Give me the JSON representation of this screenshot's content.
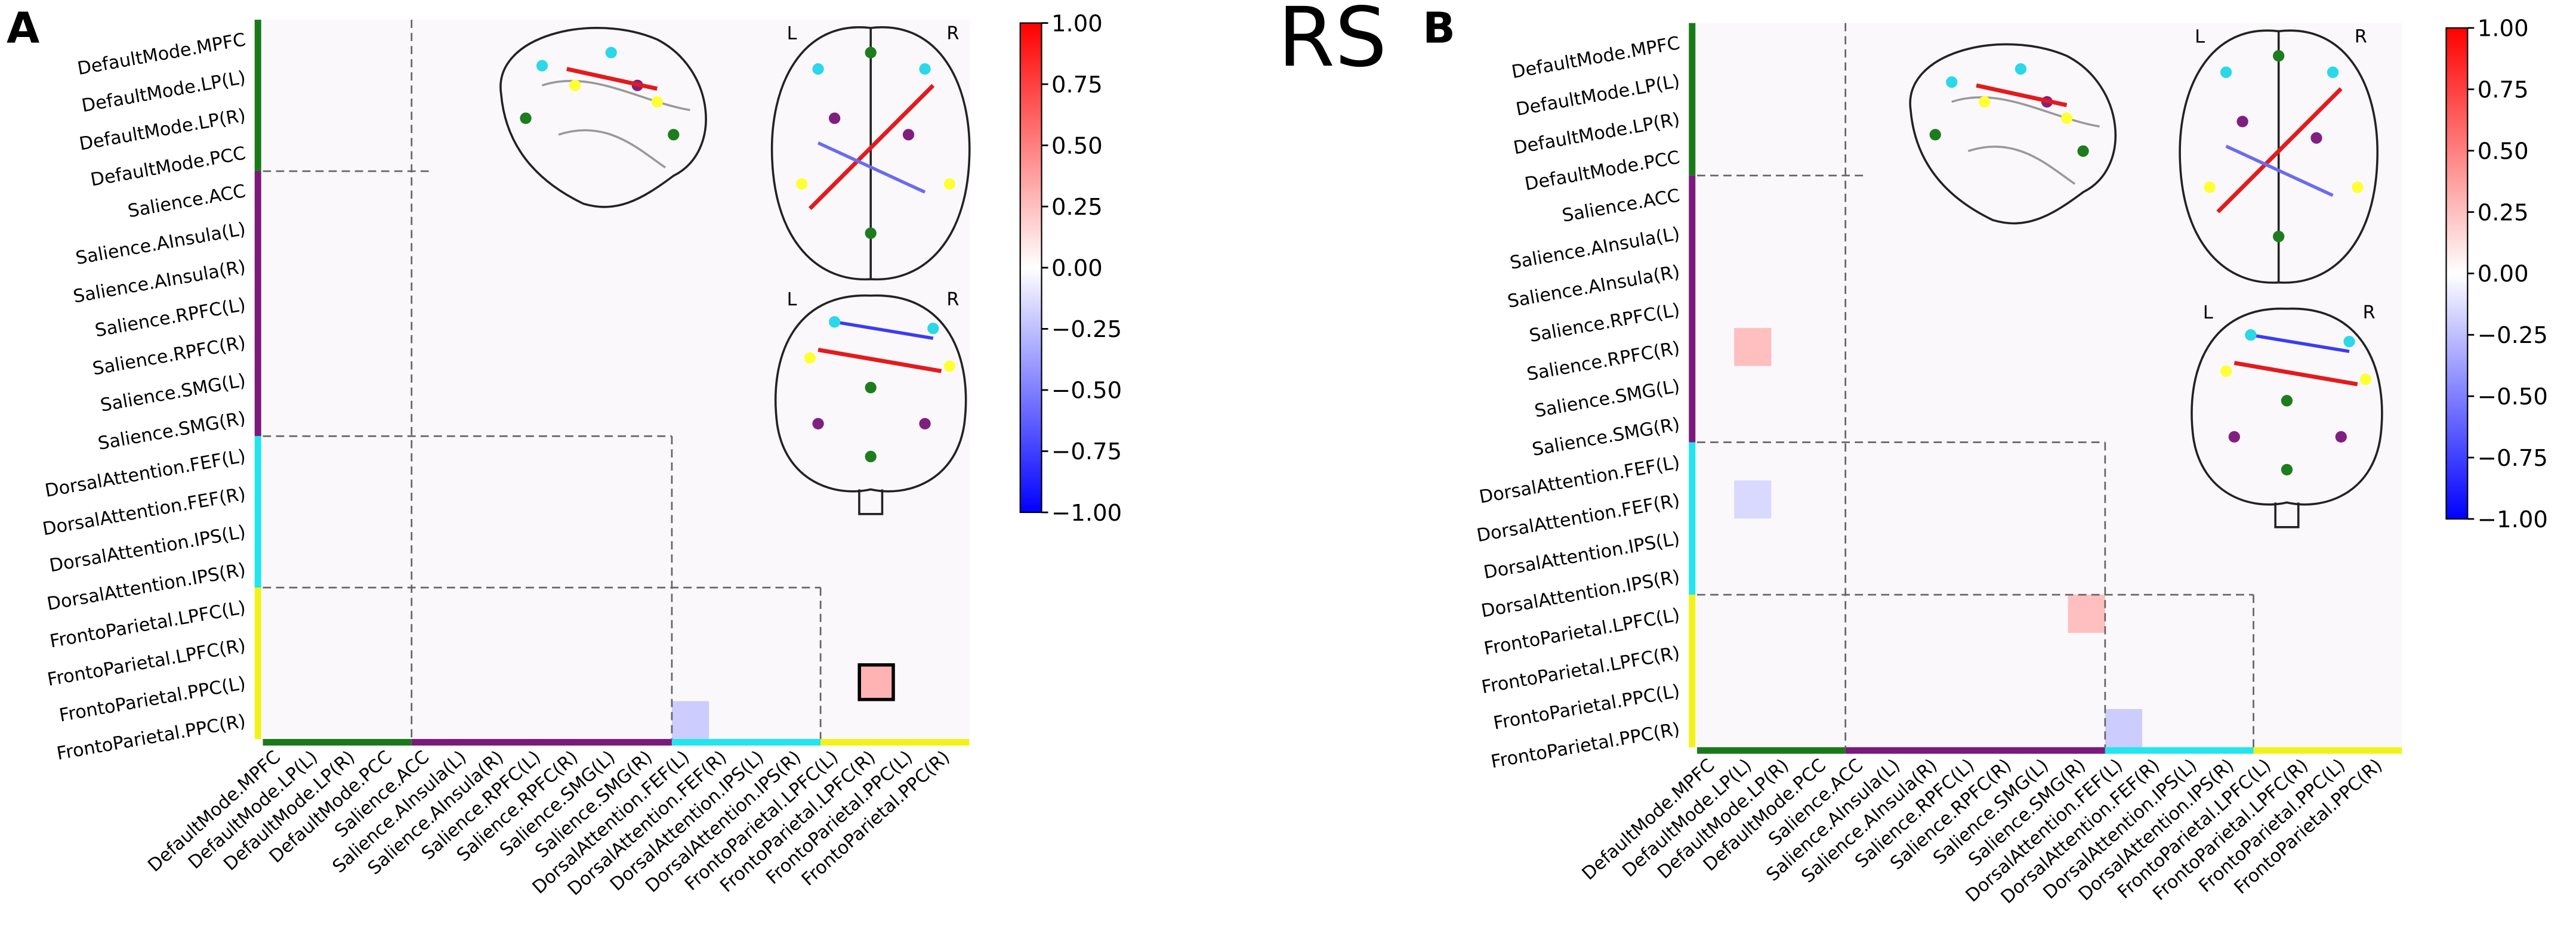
{
  "title": "RS",
  "chart_data": [
    {
      "type": "heatmap",
      "panel_label": "A",
      "orientation_labels": [
        "L",
        "R",
        "L",
        "R"
      ],
      "labels": [
        "DefaultMode.MPFC",
        "DefaultMode.LP(L)",
        "DefaultMode.LP(R)",
        "DefaultMode.PCC",
        "Salience.ACC",
        "Salience.AInsula(L)",
        "Salience.AInsula(R)",
        "Salience.RPFC(L)",
        "Salience.RPFC(R)",
        "Salience.SMG(L)",
        "Salience.SMG(R)",
        "DorsalAttention.FEF(L)",
        "DorsalAttention.FEF(R)",
        "DorsalAttention.IPS(L)",
        "DorsalAttention.IPS(R)",
        "FrontoParietal.LPFC(L)",
        "FrontoParietal.LPFC(R)",
        "FrontoParietal.PPC(L)",
        "FrontoParietal.PPC(R)"
      ],
      "group_colors": [
        "#1a7a1a",
        "#7b1a7b",
        "#22e5ee",
        "#f2f21a"
      ],
      "highlight_cell": {
        "row": "FrontoParietal.PPC(L)",
        "col": "FrontoParietal.LPFC(R)"
      },
      "values": [
        [
          0,
          0,
          0,
          0,
          0,
          0,
          0,
          0,
          0,
          0,
          0,
          0,
          0,
          0,
          0,
          0,
          0,
          0,
          0
        ],
        [
          0,
          0,
          0,
          0,
          0,
          0,
          0,
          0,
          0,
          0,
          0,
          0,
          0,
          0,
          0,
          0,
          0,
          0,
          0
        ],
        [
          0,
          0,
          0,
          0,
          0,
          0,
          0,
          0,
          0,
          0,
          0,
          0,
          0,
          0,
          0,
          0,
          0,
          0,
          0
        ],
        [
          0,
          0,
          0,
          0,
          0,
          0,
          0,
          0,
          0,
          0,
          0,
          0,
          0,
          0,
          0,
          0,
          0,
          0,
          0
        ],
        [
          0,
          0,
          0,
          0,
          0,
          0,
          0,
          0,
          0,
          0,
          0,
          0,
          0,
          0,
          0,
          0,
          0,
          0,
          0
        ],
        [
          0,
          0,
          0,
          0,
          0,
          0,
          0,
          0,
          0,
          0,
          0,
          0,
          0,
          0,
          0,
          0,
          0,
          0,
          0
        ],
        [
          0,
          0,
          0,
          0,
          0,
          0,
          0,
          0,
          0,
          0,
          0,
          0,
          0,
          0,
          0,
          0,
          0,
          0,
          0
        ],
        [
          0,
          0,
          0,
          0,
          0,
          0,
          0,
          0,
          0,
          0,
          0,
          0,
          0,
          0,
          0,
          0,
          0,
          0,
          0
        ],
        [
          0,
          0,
          0,
          0,
          0,
          0,
          0,
          0,
          0,
          0,
          0,
          0,
          0,
          0,
          0,
          0,
          0,
          0,
          0
        ],
        [
          0,
          0,
          0,
          0,
          0,
          0,
          0,
          0,
          0,
          0,
          0,
          0,
          0,
          0,
          0,
          0,
          0,
          0,
          0
        ],
        [
          0,
          0,
          0,
          0,
          0,
          0,
          0,
          0,
          0,
          0,
          0,
          0,
          0,
          0,
          0,
          0,
          0,
          0,
          0
        ],
        [
          0,
          0,
          0,
          0,
          0,
          0,
          0,
          0,
          0,
          0,
          0,
          0,
          0,
          0,
          0,
          0,
          0,
          0,
          0
        ],
        [
          0,
          0,
          0,
          0,
          0,
          0,
          0,
          0,
          0,
          0,
          0,
          0,
          0,
          0,
          0,
          0,
          0,
          0,
          0
        ],
        [
          0,
          0,
          0,
          0,
          0,
          0,
          0,
          0,
          0,
          0,
          0,
          0,
          0,
          0,
          0,
          0,
          0,
          0,
          0
        ],
        [
          0,
          0,
          0,
          0,
          0,
          0,
          0,
          0,
          0,
          0,
          0,
          0,
          0,
          0,
          0,
          0,
          0,
          0,
          0
        ],
        [
          0,
          0,
          0,
          0,
          0,
          0,
          0,
          0,
          0,
          0,
          0,
          0,
          0,
          0,
          0,
          0,
          0,
          0,
          0
        ],
        [
          0,
          0,
          0,
          0,
          0,
          0,
          0,
          0,
          0,
          0,
          0,
          0,
          0,
          0,
          0,
          0,
          0,
          0,
          0
        ],
        [
          0,
          0,
          0,
          0,
          0,
          0,
          0,
          0,
          0,
          0,
          0,
          0,
          0,
          0,
          0,
          0,
          0.3,
          0,
          0
        ],
        [
          0,
          0,
          0,
          0,
          0,
          0,
          0,
          0,
          0,
          0,
          0,
          -0.2,
          0,
          0,
          0,
          0,
          0,
          0,
          0
        ]
      ],
      "clim": [
        -1,
        1
      ],
      "cticks": [
        {
          "value": 1,
          "label": "1.00"
        },
        {
          "value": 0.75,
          "label": "0.75"
        },
        {
          "value": 0.5,
          "label": "0.50"
        },
        {
          "value": 0.25,
          "label": "0.25"
        },
        {
          "value": 0,
          "label": "0.00"
        },
        {
          "value": -0.25,
          "label": "−0.25"
        },
        {
          "value": -0.5,
          "label": "−0.50"
        },
        {
          "value": -0.75,
          "label": "−0.75"
        },
        {
          "value": -1,
          "label": "−1.00"
        }
      ]
    },
    {
      "type": "heatmap",
      "panel_label": "B",
      "orientation_labels": [
        "L",
        "R",
        "L",
        "R"
      ],
      "labels": [
        "DefaultMode.MPFC",
        "DefaultMode.LP(L)",
        "DefaultMode.LP(R)",
        "DefaultMode.PCC",
        "Salience.ACC",
        "Salience.AInsula(L)",
        "Salience.AInsula(R)",
        "Salience.RPFC(L)",
        "Salience.RPFC(R)",
        "Salience.SMG(L)",
        "Salience.SMG(R)",
        "DorsalAttention.FEF(L)",
        "DorsalAttention.FEF(R)",
        "DorsalAttention.IPS(L)",
        "DorsalAttention.IPS(R)",
        "FrontoParietal.LPFC(L)",
        "FrontoParietal.LPFC(R)",
        "FrontoParietal.PPC(L)",
        "FrontoParietal.PPC(R)"
      ],
      "group_colors": [
        "#1a7a1a",
        "#7b1a7b",
        "#22e5ee",
        "#f2f21a"
      ],
      "values": [
        [
          0,
          0,
          0,
          0,
          0,
          0,
          0,
          0,
          0,
          0,
          0,
          0,
          0,
          0,
          0,
          0,
          0,
          0,
          0
        ],
        [
          0,
          0,
          0,
          0,
          0,
          0,
          0,
          0,
          0,
          0,
          0,
          0,
          0,
          0,
          0,
          0,
          0,
          0,
          0
        ],
        [
          0,
          0,
          0,
          0,
          0,
          0,
          0,
          0,
          0,
          0,
          0,
          0,
          0,
          0,
          0,
          0,
          0,
          0,
          0
        ],
        [
          0,
          0,
          0,
          0,
          0,
          0,
          0,
          0,
          0,
          0,
          0,
          0,
          0,
          0,
          0,
          0,
          0,
          0,
          0
        ],
        [
          0,
          0,
          0,
          0,
          0,
          0,
          0,
          0,
          0,
          0,
          0,
          0,
          0,
          0,
          0,
          0,
          0,
          0,
          0
        ],
        [
          0,
          0,
          0,
          0,
          0,
          0,
          0,
          0,
          0,
          0,
          0,
          0,
          0,
          0,
          0,
          0,
          0,
          0,
          0
        ],
        [
          0,
          0,
          0,
          0,
          0,
          0,
          0,
          0,
          0,
          0,
          0,
          0,
          0,
          0,
          0,
          0,
          0,
          0,
          0
        ],
        [
          0,
          0,
          0,
          0,
          0,
          0,
          0,
          0,
          0,
          0,
          0,
          0,
          0,
          0,
          0,
          0,
          0,
          0,
          0
        ],
        [
          0,
          0.25,
          0,
          0,
          0,
          0,
          0,
          0,
          0,
          0,
          0,
          0,
          0,
          0,
          0,
          0,
          0,
          0,
          0
        ],
        [
          0,
          0,
          0,
          0,
          0,
          0,
          0,
          0,
          0,
          0,
          0,
          0,
          0,
          0,
          0,
          0,
          0,
          0,
          0
        ],
        [
          0,
          0,
          0,
          0,
          0,
          0,
          0,
          0,
          0,
          0,
          0,
          0,
          0,
          0,
          0,
          0,
          0,
          0,
          0
        ],
        [
          0,
          0,
          0,
          0,
          0,
          0,
          0,
          0,
          0,
          0,
          0,
          0,
          0,
          0,
          0,
          0,
          0,
          0,
          0
        ],
        [
          0,
          -0.15,
          0,
          0,
          0,
          0,
          0,
          0,
          0,
          0,
          0,
          0,
          0,
          0,
          0,
          0,
          0,
          0,
          0
        ],
        [
          0,
          0,
          0,
          0,
          0,
          0,
          0,
          0,
          0,
          0,
          0,
          0,
          0,
          0,
          0,
          0,
          0,
          0,
          0
        ],
        [
          0,
          0,
          0,
          0,
          0,
          0,
          0,
          0,
          0,
          0,
          0,
          0,
          0,
          0,
          0,
          0,
          0,
          0,
          0
        ],
        [
          0,
          0,
          0,
          0,
          0,
          0,
          0,
          0,
          0,
          0,
          0.25,
          0,
          0,
          0,
          0,
          0,
          0,
          0,
          0
        ],
        [
          0,
          0,
          0,
          0,
          0,
          0,
          0,
          0,
          0,
          0,
          0,
          0,
          0,
          0,
          0,
          0,
          0,
          0,
          0
        ],
        [
          0,
          0,
          0,
          0,
          0,
          0,
          0,
          0,
          0,
          0,
          0,
          0,
          0,
          0,
          0,
          0,
          0,
          0,
          0
        ],
        [
          0,
          0,
          0,
          0,
          0,
          0,
          0,
          0,
          0,
          0,
          0,
          -0.2,
          0,
          0,
          0,
          0,
          0,
          0,
          0
        ]
      ],
      "clim": [
        -1,
        1
      ],
      "cticks": [
        {
          "value": 1,
          "label": "1.00"
        },
        {
          "value": 0.75,
          "label": "0.75"
        },
        {
          "value": 0.5,
          "label": "0.50"
        },
        {
          "value": 0.25,
          "label": "0.25"
        },
        {
          "value": 0,
          "label": "0.00"
        },
        {
          "value": -0.25,
          "label": "−0.25"
        },
        {
          "value": -0.5,
          "label": "−0.50"
        },
        {
          "value": -0.75,
          "label": "−0.75"
        },
        {
          "value": -1,
          "label": "−1.00"
        }
      ]
    }
  ]
}
